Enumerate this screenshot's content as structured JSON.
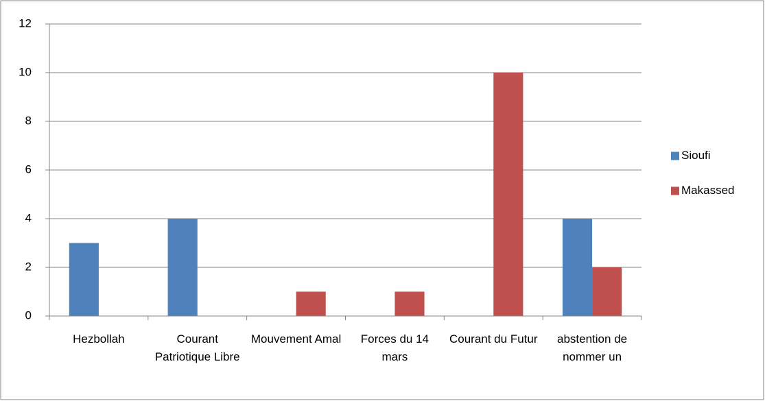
{
  "chart_data": {
    "type": "bar",
    "categories": [
      "Hezbollah",
      "Courant Patriotique Libre",
      "Mouvement Amal",
      "Forces du 14 mars",
      "Courant du Futur",
      "abstention de nommer un"
    ],
    "series": [
      {
        "name": "Sioufi",
        "color": "#4f81bd",
        "values": [
          3,
          4,
          0,
          0,
          0,
          4
        ]
      },
      {
        "name": "Makassed",
        "color": "#c0504d",
        "values": [
          0,
          0,
          1,
          1,
          10,
          2
        ]
      }
    ],
    "ylim": [
      0,
      12
    ],
    "yticks": [
      0,
      2,
      4,
      6,
      8,
      10,
      12
    ],
    "grid": true,
    "legend": "right"
  }
}
